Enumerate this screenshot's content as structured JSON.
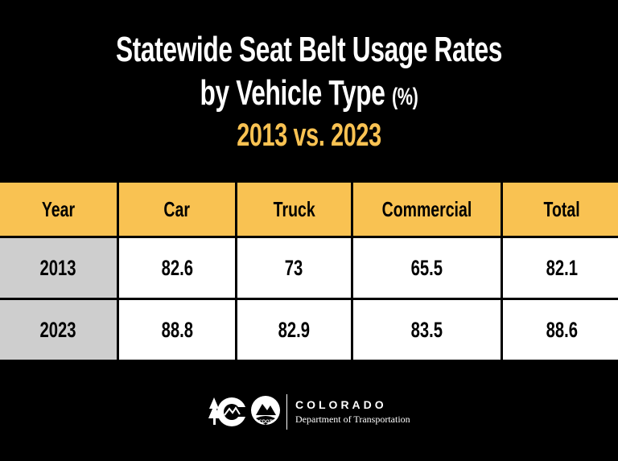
{
  "title": {
    "line1": "Statewide Seat Belt Usage Rates",
    "line2": "by Vehicle Type",
    "unit": "(%)",
    "subtitle": "2013 vs. 2023"
  },
  "colors": {
    "background": "#000000",
    "header": "#f9c252",
    "year_cell": "#cecece",
    "cell": "#ffffff",
    "subtitle": "#f9c252"
  },
  "chart_data": {
    "type": "table",
    "title": "Statewide Seat Belt Usage Rates by Vehicle Type (%)",
    "subtitle": "2013 vs. 2023",
    "columns": [
      "Year",
      "Car",
      "Truck",
      "Commercial",
      "Total"
    ],
    "rows": [
      {
        "year": "2013",
        "values": [
          "82.6",
          "73",
          "65.5",
          "82.1"
        ]
      },
      {
        "year": "2023",
        "values": [
          "88.8",
          "82.9",
          "83.5",
          "88.6"
        ]
      }
    ]
  },
  "footer": {
    "logo_icons": [
      "colorado-c-logo-icon",
      "cdot-logo-icon"
    ],
    "cdot_text": "CDOT",
    "org_name": "COLORADO",
    "department": "Department of Transportation"
  }
}
